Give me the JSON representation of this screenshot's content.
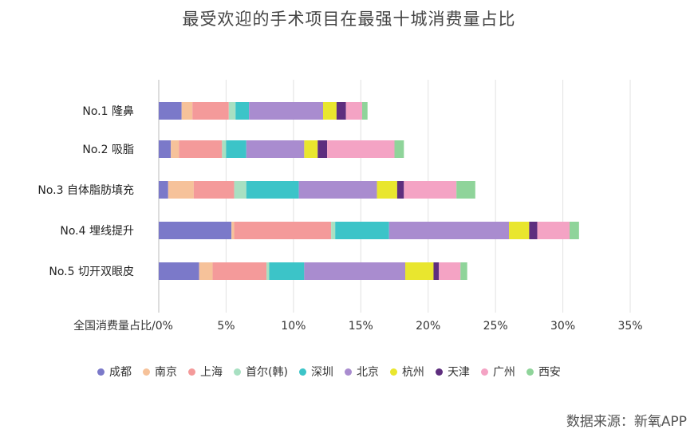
{
  "chart_data": {
    "type": "bar",
    "orientation": "horizontal",
    "stacked": true,
    "title": "最受欢迎的手术项目在最强十城消费量占比",
    "categories": [
      "No.1 隆鼻",
      "No.2 吸脂",
      "No.3 自体脂肪填充",
      "No.4 埋线提升",
      "No.5 切开双眼皮"
    ],
    "x_tick_labels": [
      "全国消费量占比/0%",
      "5%",
      "10%",
      "15%",
      "20%",
      "25%",
      "30%",
      "35%"
    ],
    "xlim": [
      0,
      35
    ],
    "grid": true,
    "legend_position": "bottom",
    "series": [
      {
        "name": "成都",
        "color": "#7b79c9",
        "values": [
          1.7,
          0.9,
          0.7,
          5.4,
          3.0
        ]
      },
      {
        "name": "南京",
        "color": "#f6c29a",
        "values": [
          0.8,
          0.6,
          1.9,
          0.2,
          1.0
        ]
      },
      {
        "name": "上海",
        "color": "#f49a9a",
        "values": [
          2.7,
          3.2,
          3.0,
          7.2,
          4.0
        ]
      },
      {
        "name": "首尔(韩)",
        "color": "#a8e0c2",
        "values": [
          0.5,
          0.3,
          0.9,
          0.3,
          0.2
        ]
      },
      {
        "name": "深圳",
        "color": "#3cc4c8",
        "values": [
          1.0,
          1.5,
          3.9,
          4.0,
          2.6
        ]
      },
      {
        "name": "北京",
        "color": "#a98ccf",
        "values": [
          5.5,
          4.3,
          5.8,
          8.9,
          7.5
        ]
      },
      {
        "name": "杭州",
        "color": "#e9e62e",
        "values": [
          1.0,
          1.0,
          1.5,
          1.5,
          2.1
        ]
      },
      {
        "name": "天津",
        "color": "#5e2e7e",
        "values": [
          0.7,
          0.7,
          0.5,
          0.6,
          0.4
        ]
      },
      {
        "name": "广州",
        "color": "#f4a3c4",
        "values": [
          1.2,
          5.0,
          3.9,
          2.4,
          1.6
        ]
      },
      {
        "name": "西安",
        "color": "#8fd49a",
        "values": [
          0.4,
          0.7,
          1.4,
          0.7,
          0.5
        ]
      }
    ]
  },
  "source": "数据来源：新氧APP"
}
